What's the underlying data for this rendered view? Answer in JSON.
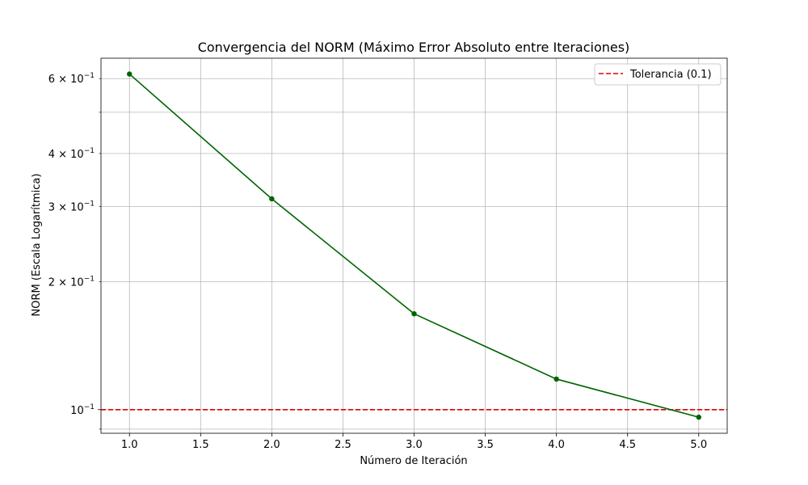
{
  "chart_data": {
    "type": "line",
    "title": "Convergencia del NORM (Máximo Error Absoluto entre Iteraciones)",
    "xlabel": "Número de Iteración",
    "ylabel": "NORM (Escala Logarítmica)",
    "y_scale": "log",
    "xlim": [
      0.8,
      5.2
    ],
    "ylim": [
      0.088,
      0.67
    ],
    "x_ticks": [
      1.0,
      1.5,
      2.0,
      2.5,
      3.0,
      3.5,
      4.0,
      4.5,
      5.0
    ],
    "x_tick_labels": [
      "1.0",
      "1.5",
      "2.0",
      "2.5",
      "3.0",
      "3.5",
      "4.0",
      "4.5",
      "5.0"
    ],
    "y_major_ticks": [
      0.1
    ],
    "y_minor_ticks": [
      0.09,
      0.2,
      0.3,
      0.4,
      0.5,
      0.6
    ],
    "y_tick_labels": [
      {
        "value": 0.1,
        "base": "10",
        "exp": "−1"
      },
      {
        "value": 0.2,
        "base": "2 × 10",
        "exp": "−1"
      },
      {
        "value": 0.3,
        "base": "3 × 10",
        "exp": "−1"
      },
      {
        "value": 0.4,
        "base": "4 × 10",
        "exp": "−1"
      },
      {
        "value": 0.6,
        "base": "6 × 10",
        "exp": "−1"
      }
    ],
    "grid": true,
    "legend_position": "top-right",
    "series": [
      {
        "color": "#006400",
        "marker": "circle",
        "x": [
          1,
          2,
          3,
          4,
          5
        ],
        "y": [
          0.615,
          0.313,
          0.168,
          0.118,
          0.096
        ]
      }
    ],
    "reference_lines": [
      {
        "name": "Tolerancia (0.1)",
        "y": 0.1,
        "color": "#e00000",
        "style": "dashed"
      }
    ]
  }
}
